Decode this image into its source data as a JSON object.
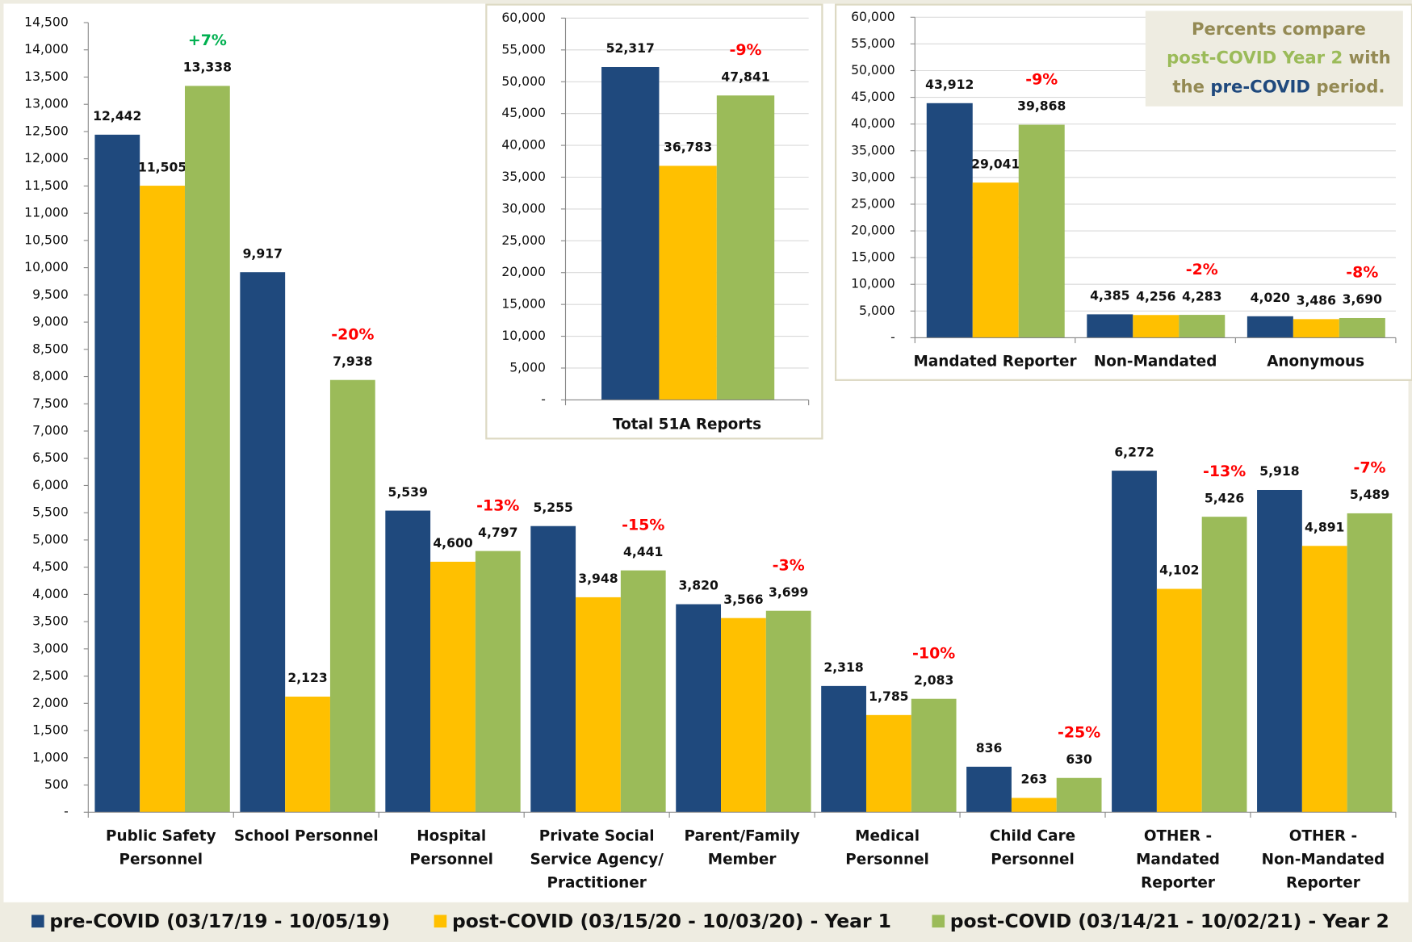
{
  "chart_data": [
    {
      "type": "bar",
      "categories": [
        "Public Safety\nPersonnel",
        "School Personnel",
        "Hospital\nPersonnel",
        "Private Social\nService Agency/\nPractitioner",
        "Parent/Family\nMember",
        "Medical\nPersonnel",
        "Child Care\nPersonnel",
        "OTHER -\nMandated\nReporter",
        "OTHER -\nNon-Mandated\nReporter"
      ],
      "series": [
        {
          "name": "pre-COVID (03/17/19 - 10/05/19)",
          "color": "#1f497d",
          "values": [
            12442,
            9917,
            5539,
            5255,
            3820,
            2318,
            836,
            6272,
            5918
          ],
          "value_labels": [
            "12,442",
            "9,917",
            "5,539",
            "5,255",
            "3,820",
            "2,318",
            "836",
            "6,272",
            "5,918"
          ]
        },
        {
          "name": "post-COVID (03/15/20 - 10/03/20) - Year 1",
          "color": "#ffc000",
          "values": [
            11505,
            2123,
            4600,
            3948,
            3566,
            1785,
            263,
            4102,
            4891
          ],
          "value_labels": [
            "11,505",
            "2,123",
            "4,600",
            "3,948",
            "3,566",
            "1,785",
            "263",
            "4,102",
            "4,891"
          ]
        },
        {
          "name": "post-COVID (03/14/21 - 10/02/21) - Year 2",
          "color": "#9bbb59",
          "values": [
            13338,
            7938,
            4797,
            4441,
            3699,
            2083,
            630,
            5426,
            5489
          ],
          "value_labels": [
            "13,338",
            "7,938",
            "4,797",
            "4,441",
            "3,699",
            "2,083",
            "630",
            "5,426",
            "5,489"
          ]
        }
      ],
      "annotations": [
        {
          "text": "+7%",
          "color": "#00b050"
        },
        {
          "text": "-20%",
          "color": "#ff0000"
        },
        {
          "text": "-13%",
          "color": "#ff0000"
        },
        {
          "text": "-15%",
          "color": "#ff0000"
        },
        {
          "text": "-3%",
          "color": "#ff0000"
        },
        {
          "text": "-10%",
          "color": "#ff0000"
        },
        {
          "text": "-25%",
          "color": "#ff0000"
        },
        {
          "text": "-13%",
          "color": "#ff0000"
        },
        {
          "text": "-7%",
          "color": "#ff0000"
        }
      ],
      "ylim": [
        0,
        14500
      ],
      "yticks": [
        {
          "value": 0,
          "label": "-"
        },
        500,
        {
          "value": 1000,
          "label": "1,000"
        },
        {
          "value": 1500,
          "label": "1,500"
        },
        {
          "value": 2000,
          "label": "2,000"
        },
        {
          "value": 2500,
          "label": "2,500"
        },
        {
          "value": 3000,
          "label": "3,000"
        },
        {
          "value": 3500,
          "label": "3,500"
        },
        {
          "value": 4000,
          "label": "4,000"
        },
        {
          "value": 4500,
          "label": "4,500"
        },
        {
          "value": 5000,
          "label": "5,000"
        },
        {
          "value": 5500,
          "label": "5,500"
        },
        {
          "value": 6000,
          "label": "6,000"
        },
        {
          "value": 6500,
          "label": "6,500"
        },
        {
          "value": 7000,
          "label": "7,000"
        },
        {
          "value": 7500,
          "label": "7,500"
        },
        {
          "value": 8000,
          "label": "8,000"
        },
        {
          "value": 8500,
          "label": "8,500"
        },
        {
          "value": 9000,
          "label": "9,000"
        },
        {
          "value": 9500,
          "label": "9,500"
        },
        {
          "value": 10000,
          "label": "10,000"
        },
        {
          "value": 10500,
          "label": "10,500"
        },
        {
          "value": 11000,
          "label": "11,000"
        },
        {
          "value": 11500,
          "label": "11,500"
        },
        {
          "value": 12000,
          "label": "12,000"
        },
        {
          "value": 12500,
          "label": "12,500"
        },
        {
          "value": 13000,
          "label": "13,000"
        },
        {
          "value": 13500,
          "label": "13,500"
        },
        {
          "value": 14000,
          "label": "14,000"
        },
        {
          "value": 14500,
          "label": "14,500"
        }
      ],
      "grid": false,
      "legend": "bottom"
    },
    {
      "type": "bar",
      "categories": [
        "Total 51A Reports"
      ],
      "series": [
        {
          "color": "#1f497d",
          "values": [
            52317
          ],
          "value_labels": [
            "52,317"
          ]
        },
        {
          "color": "#ffc000",
          "values": [
            36783
          ],
          "value_labels": [
            "36,783"
          ]
        },
        {
          "color": "#9bbb59",
          "values": [
            47841
          ],
          "value_labels": [
            "47,841"
          ]
        }
      ],
      "annotations": [
        {
          "text": "-9%",
          "color": "#ff0000"
        }
      ],
      "ylim": [
        0,
        60000
      ],
      "yticks": [
        {
          "value": 0,
          "label": "-"
        },
        {
          "value": 5000,
          "label": "5,000"
        },
        {
          "value": 10000,
          "label": "10,000"
        },
        {
          "value": 15000,
          "label": "15,000"
        },
        {
          "value": 20000,
          "label": "20,000"
        },
        {
          "value": 25000,
          "label": "25,000"
        },
        {
          "value": 30000,
          "label": "30,000"
        },
        {
          "value": 35000,
          "label": "35,000"
        },
        {
          "value": 40000,
          "label": "40,000"
        },
        {
          "value": 45000,
          "label": "45,000"
        },
        {
          "value": 50000,
          "label": "50,000"
        },
        {
          "value": 55000,
          "label": "55,000"
        },
        {
          "value": 60000,
          "label": "60,000"
        }
      ],
      "grid": true
    },
    {
      "type": "bar",
      "categories": [
        "Mandated Reporter",
        "Non-Mandated",
        "Anonymous"
      ],
      "series": [
        {
          "color": "#1f497d",
          "values": [
            43912,
            4385,
            4020
          ],
          "value_labels": [
            "43,912",
            "4,385",
            "4,020"
          ]
        },
        {
          "color": "#ffc000",
          "values": [
            29041,
            4256,
            3486
          ],
          "value_labels": [
            "29,041",
            "4,256",
            "3,486"
          ]
        },
        {
          "color": "#9bbb59",
          "values": [
            39868,
            4283,
            3690
          ],
          "value_labels": [
            "39,868",
            "4,283",
            "3,690"
          ]
        }
      ],
      "annotations": [
        {
          "text": "-9%",
          "color": "#ff0000"
        },
        {
          "text": "-2%",
          "color": "#ff0000"
        },
        {
          "text": "-8%",
          "color": "#ff0000"
        }
      ],
      "ylim": [
        0,
        60000
      ],
      "yticks": [
        {
          "value": 0,
          "label": "-"
        },
        {
          "value": 5000,
          "label": "5,000"
        },
        {
          "value": 10000,
          "label": "10,000"
        },
        {
          "value": 15000,
          "label": "15,000"
        },
        {
          "value": 20000,
          "label": "20,000"
        },
        {
          "value": 25000,
          "label": "25,000"
        },
        {
          "value": 30000,
          "label": "30,000"
        },
        {
          "value": 35000,
          "label": "35,000"
        },
        {
          "value": 40000,
          "label": "40,000"
        },
        {
          "value": 45000,
          "label": "45,000"
        },
        {
          "value": 50000,
          "label": "50,000"
        },
        {
          "value": 55000,
          "label": "55,000"
        },
        {
          "value": 60000,
          "label": "60,000"
        }
      ],
      "grid": true,
      "note": [
        [
          {
            "text": "Percents compare",
            "color": "#948a54"
          }
        ],
        [
          {
            "text": "post-COVID Year 2",
            "color": "#9bbb59"
          },
          {
            "text": " with",
            "color": "#948a54"
          }
        ],
        [
          {
            "text": "the ",
            "color": "#948a54"
          },
          {
            "text": "pre-COVID",
            "color": "#1f497d"
          },
          {
            "text": " period.",
            "color": "#948a54"
          }
        ]
      ]
    }
  ]
}
